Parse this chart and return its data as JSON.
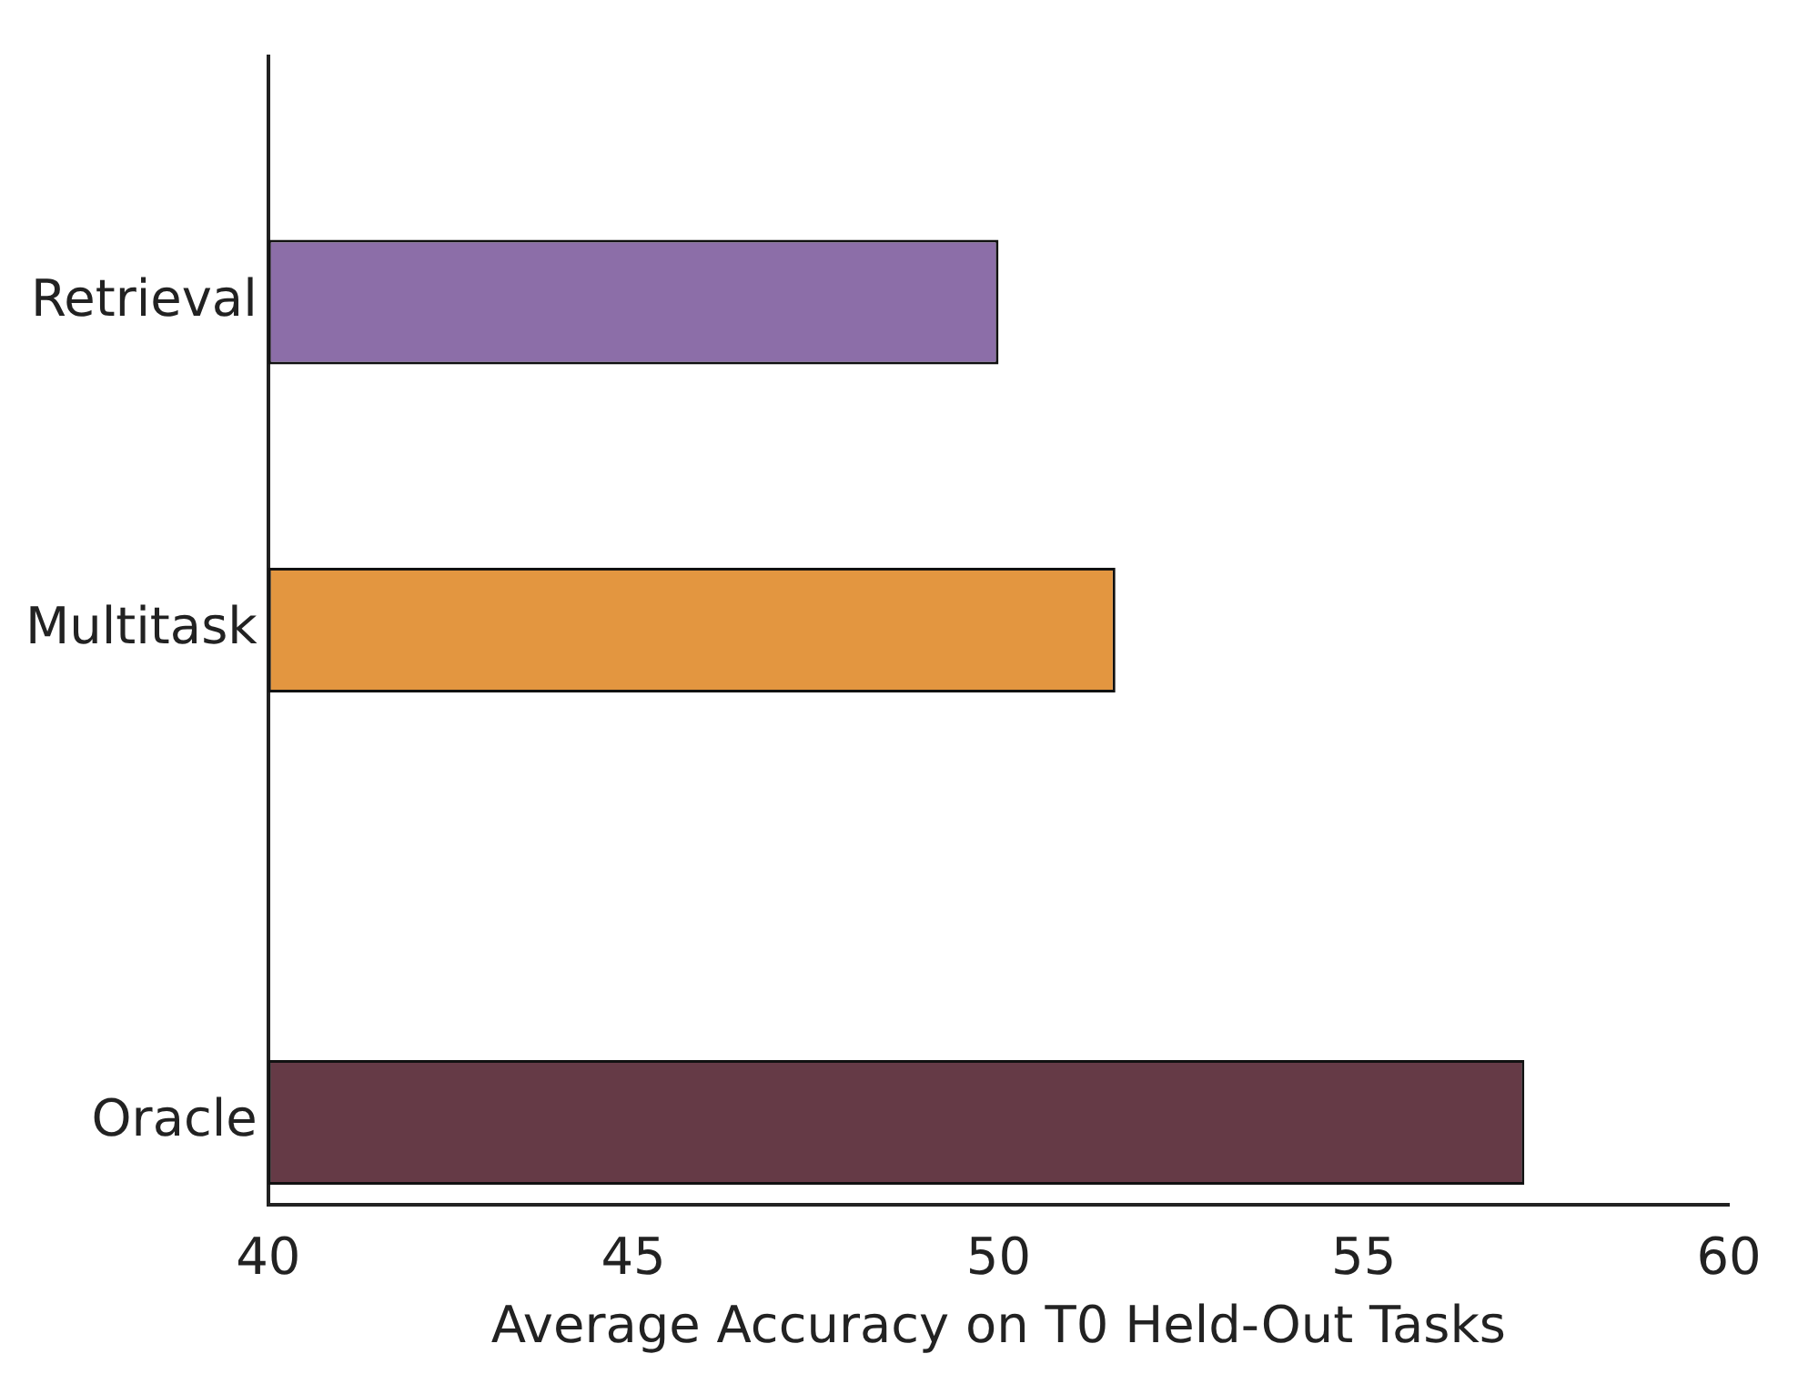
{
  "chart_data": {
    "type": "bar",
    "orientation": "horizontal",
    "xlabel": "Average Accuracy on T0 Held-Out Tasks",
    "categories": [
      null,
      "Retrieval",
      null,
      "Multitask",
      null,
      null,
      "Oracle"
    ],
    "values": [
      40,
      50.0,
      40,
      51.6,
      40,
      40,
      57.2
    ],
    "colors": [
      "#1f6f7a",
      "#8c6ea8",
      "#8b2e2e",
      "#e39640",
      "#c9a227",
      "#6b8e23",
      "#653a46"
    ],
    "xlim": [
      40,
      60
    ],
    "xticks": [
      40,
      45,
      50,
      55,
      60
    ],
    "grid": false,
    "legend": false
  }
}
